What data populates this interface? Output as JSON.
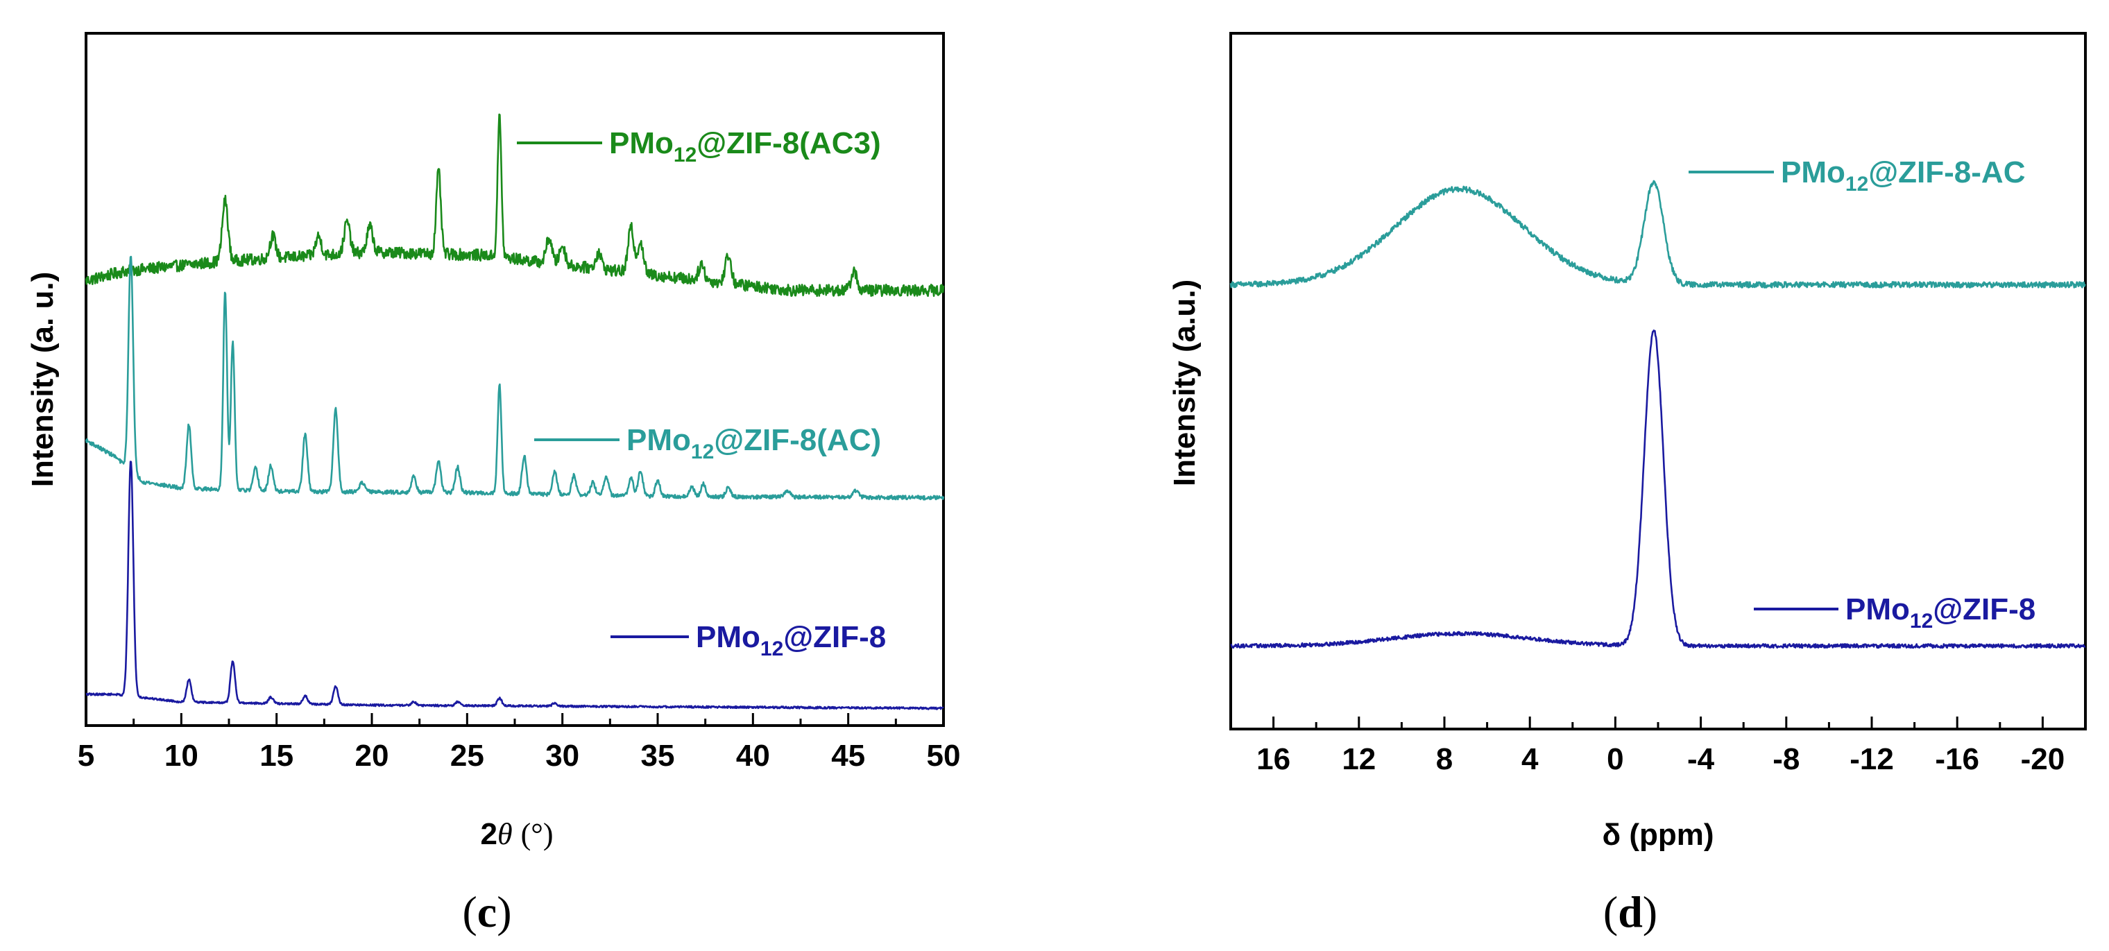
{
  "figure": {
    "panels": [
      {
        "label_open": "(",
        "label_letter": "c",
        "label_close": ")"
      },
      {
        "label_open": "(",
        "label_letter": "d",
        "label_close": ")"
      }
    ]
  },
  "chart_data": [
    {
      "type": "line",
      "panel": "c",
      "xlabel_prefix": "2",
      "xlabel_symbol": "θ",
      "xlabel_unit": "(°)",
      "ylabel": "Intensity (a. u.)",
      "xlim": [
        5,
        50
      ],
      "ylim": [
        0,
        100
      ],
      "xticks": [
        "5",
        "10",
        "15",
        "20",
        "25",
        "30",
        "35",
        "40",
        "45",
        "50"
      ],
      "tick_values": [
        5,
        10,
        15,
        20,
        25,
        30,
        35,
        40,
        45,
        50
      ],
      "show_yticks": false,
      "grid": false,
      "series": [
        {
          "name": "PMo12@ZIF-8(AC3)",
          "label_parts": [
            "PMo",
            "12",
            "@ZIF-8(AC3)"
          ],
          "color": "#1a8a1a",
          "legend_position": "top-right",
          "baseline": [
            [
              5,
              67
            ],
            [
              7,
              68.5
            ],
            [
              12,
              70
            ],
            [
              20,
              71.5
            ],
            [
              26,
              71
            ],
            [
              30,
              69.5
            ],
            [
              36,
              67.5
            ],
            [
              42,
              65.5
            ],
            [
              50,
              65.5
            ]
          ],
          "noise": 0.9,
          "peaks": [
            [
              12.3,
              9.5,
              0.15
            ],
            [
              14.8,
              3.5,
              0.15
            ],
            [
              17.2,
              3,
              0.15
            ],
            [
              18.7,
              5,
              0.15
            ],
            [
              19.9,
              4,
              0.15
            ],
            [
              23.5,
              13,
              0.12
            ],
            [
              26.7,
              22,
              0.1
            ],
            [
              29.3,
              4,
              0.15
            ],
            [
              30.0,
              3,
              0.15
            ],
            [
              31.9,
              2.5,
              0.15
            ],
            [
              33.6,
              7,
              0.15
            ],
            [
              34.1,
              5,
              0.15
            ],
            [
              37.3,
              2.5,
              0.15
            ],
            [
              38.7,
              4.5,
              0.15
            ],
            [
              45.3,
              3,
              0.15
            ]
          ]
        },
        {
          "name": "PMo12@ZIF-8(AC)",
          "label_parts": [
            "PMo",
            "12",
            "@ZIF-8(AC)"
          ],
          "color": "#2a9d9a",
          "legend_position": "middle-right",
          "baseline": [
            [
              5,
              42
            ],
            [
              6.5,
              39.5
            ],
            [
              8,
              35.5
            ],
            [
              10,
              34.5
            ],
            [
              15,
              34
            ],
            [
              25,
              33.8
            ],
            [
              35,
              33.2
            ],
            [
              50,
              33
            ]
          ],
          "noise": 0.3,
          "peaks": [
            [
              7.35,
              34,
              0.12
            ],
            [
              10.4,
              10,
              0.12
            ],
            [
              12.3,
              31,
              0.1
            ],
            [
              12.7,
              23,
              0.1
            ],
            [
              13.9,
              3.5,
              0.12
            ],
            [
              14.7,
              4,
              0.12
            ],
            [
              16.5,
              9,
              0.12
            ],
            [
              18.1,
              13,
              0.12
            ],
            [
              19.5,
              1.5,
              0.15
            ],
            [
              22.2,
              2.5,
              0.12
            ],
            [
              23.5,
              5,
              0.12
            ],
            [
              24.5,
              4,
              0.12
            ],
            [
              26.7,
              17,
              0.1
            ],
            [
              28.0,
              6,
              0.12
            ],
            [
              29.6,
              3.5,
              0.12
            ],
            [
              30.6,
              3,
              0.12
            ],
            [
              31.6,
              2,
              0.12
            ],
            [
              32.3,
              3,
              0.12
            ],
            [
              33.6,
              3,
              0.12
            ],
            [
              34.1,
              4,
              0.12
            ],
            [
              35.0,
              2.5,
              0.12
            ],
            [
              36.8,
              1.5,
              0.12
            ],
            [
              37.4,
              2,
              0.12
            ],
            [
              38.7,
              1.5,
              0.12
            ],
            [
              41.8,
              1,
              0.15
            ],
            [
              45.4,
              1,
              0.15
            ]
          ]
        },
        {
          "name": "PMo12@ZIF-8",
          "label_parts": [
            "PMo",
            "12",
            "@ZIF-8"
          ],
          "color": "#1a1aa0",
          "legend_position": "bottom-right",
          "baseline": [
            [
              5,
              2.2
            ],
            [
              6.5,
              2.2
            ],
            [
              10,
              1
            ],
            [
              20,
              0.5
            ],
            [
              50,
              0
            ]
          ],
          "noise": 0.15,
          "peaks": [
            [
              7.35,
              37,
              0.13
            ],
            [
              10.4,
              3.5,
              0.12
            ],
            [
              12.7,
              6.5,
              0.12
            ],
            [
              14.7,
              1,
              0.12
            ],
            [
              16.5,
              1.3,
              0.12
            ],
            [
              18.1,
              2.8,
              0.12
            ],
            [
              22.2,
              0.6,
              0.12
            ],
            [
              24.5,
              0.6,
              0.12
            ],
            [
              26.7,
              1.2,
              0.12
            ],
            [
              29.6,
              0.5,
              0.12
            ]
          ]
        }
      ]
    },
    {
      "type": "line",
      "panel": "d",
      "xlabel": "δ (ppm)",
      "ylabel": "Intensity (a.u.)",
      "xlim": [
        18,
        -22
      ],
      "ylim": [
        0,
        100
      ],
      "xticks": [
        "16",
        "12",
        "8",
        "4",
        "0",
        "-4",
        "-8",
        "-12",
        "-16",
        "-20"
      ],
      "tick_values": [
        16,
        12,
        8,
        4,
        0,
        -4,
        -8,
        -12,
        -16,
        -20
      ],
      "show_yticks": false,
      "grid": false,
      "series": [
        {
          "name": "PMo12@ZIF-8-AC",
          "label_parts": [
            "PMo",
            "12",
            "@ZIF-8-AC"
          ],
          "color": "#2a9d9a",
          "legend_position": "top-right",
          "baseline": [
            [
              18,
              65
            ],
            [
              -22,
              65
            ]
          ],
          "noise": 0.45,
          "peaks": [
            [
              7.3,
              15.5,
              3.0
            ],
            [
              -1.8,
              16.5,
              0.45
            ]
          ]
        },
        {
          "name": "PMo12@ZIF-8",
          "label_parts": [
            "PMo",
            "12",
            "@ZIF-8"
          ],
          "color": "#1a1aa0",
          "legend_position": "bottom-right",
          "baseline": [
            [
              18,
              6.5
            ],
            [
              -22,
              6.5
            ]
          ],
          "noise": 0.3,
          "peaks": [
            [
              7.2,
              2.0,
              3.2
            ],
            [
              -1.8,
              51,
              0.45
            ]
          ]
        }
      ]
    }
  ]
}
